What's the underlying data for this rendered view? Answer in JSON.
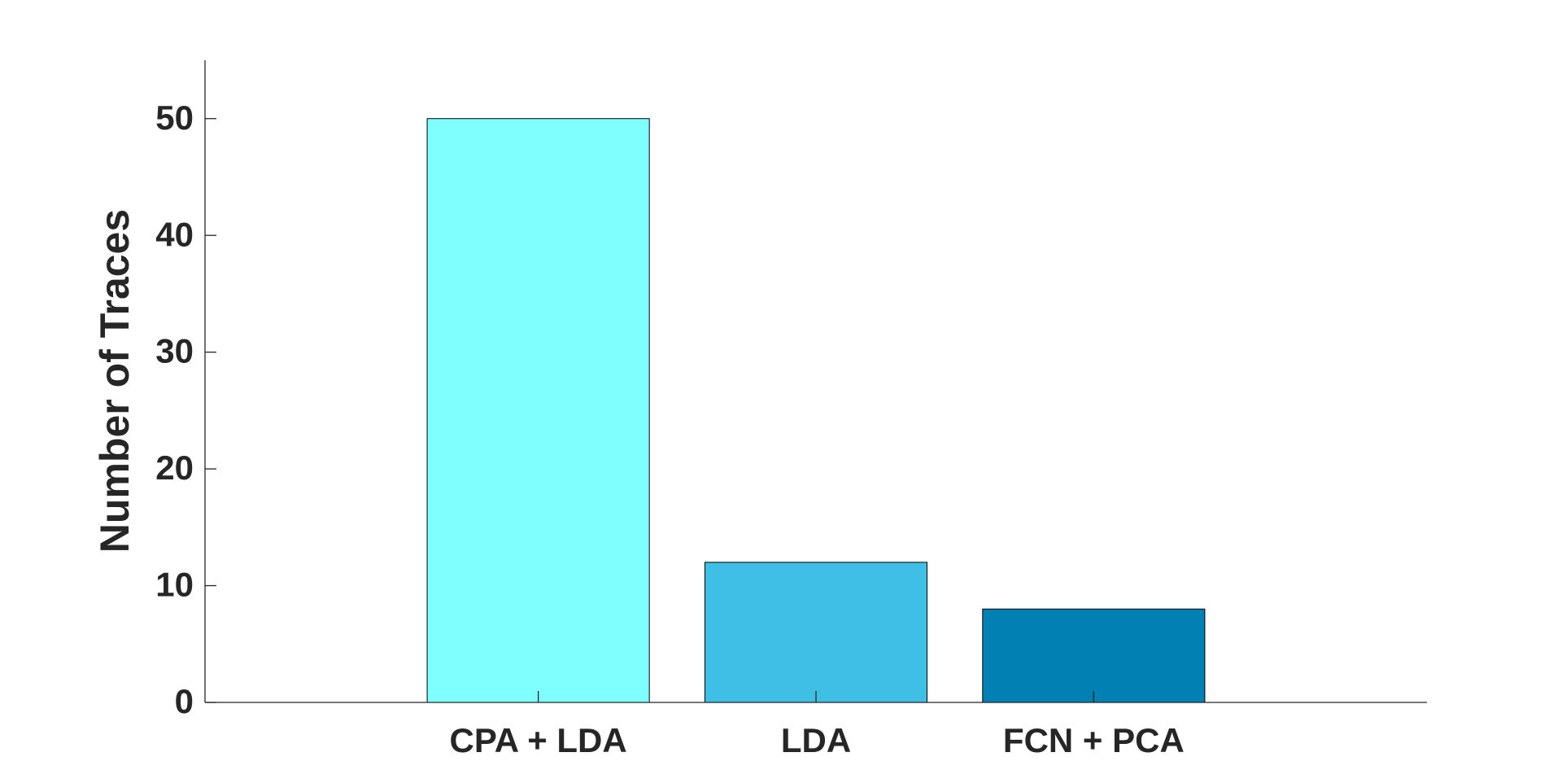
{
  "chart_data": {
    "type": "bar",
    "y_label": "Number of Traces",
    "categories": [
      "CPA + LDA",
      "LDA",
      "FCN + PCA"
    ],
    "values": [
      50,
      12,
      8
    ],
    "colors": [
      "#80ffff",
      "#40bfe6",
      "#0080b3"
    ],
    "ylim": [
      0,
      55
    ],
    "yticks": [
      0,
      10,
      20,
      30,
      40,
      50
    ]
  }
}
